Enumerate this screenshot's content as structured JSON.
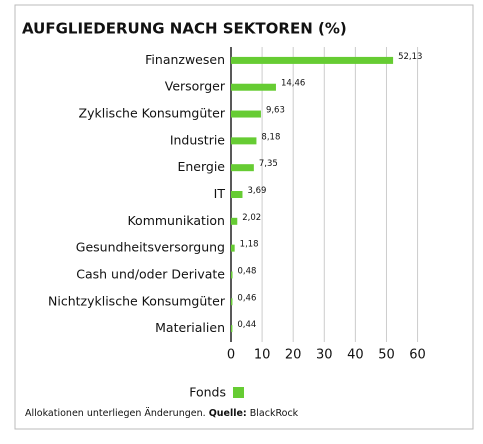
{
  "chart_data": {
    "type": "bar",
    "orientation": "horizontal",
    "title": "AUFGLIEDERUNG NACH SEKTOREN (%)",
    "categories": [
      "Finanzwesen",
      "Versorger",
      "Zyklische Konsumgüter",
      "Industrie",
      "Energie",
      "IT",
      "Kommunikation",
      "Gesundheitsversorgung",
      "Cash und/oder Derivate",
      "Nichtzyklische Konsumgüter",
      "Materialien"
    ],
    "series": [
      {
        "name": "Fonds",
        "color": "#66cc33",
        "values": [
          52.13,
          14.46,
          9.63,
          8.18,
          7.35,
          3.69,
          2.02,
          1.18,
          0.48,
          0.46,
          0.44
        ],
        "value_labels": [
          "52,13",
          "14,46",
          "9,63",
          "8,18",
          "7,35",
          "3,69",
          "2,02",
          "1,18",
          "0,48",
          "0,46",
          "0,44"
        ]
      }
    ],
    "xlim": [
      0,
      64
    ],
    "xticks": [
      0,
      10,
      20,
      30,
      40,
      50,
      60
    ],
    "grid": true,
    "footnote": {
      "note": "Allokationen unterliegen Änderungen.",
      "source_label": "Quelle:",
      "source": "BlackRock"
    }
  }
}
